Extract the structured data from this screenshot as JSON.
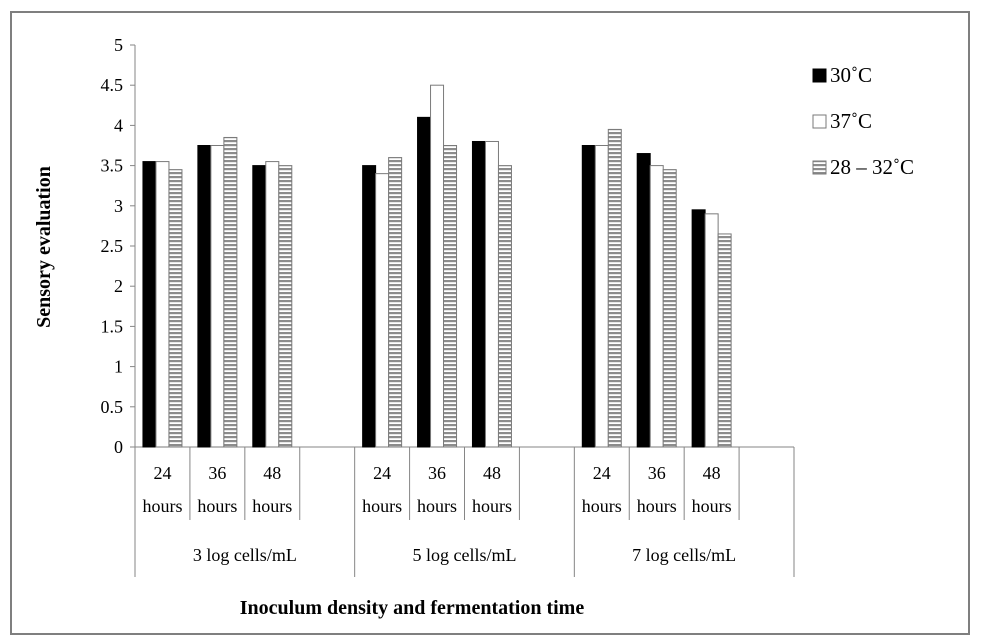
{
  "chart_data": {
    "type": "bar",
    "title": "",
    "xlabel": "Inoculum density and fermentation time",
    "ylabel": "Sensory evaluation",
    "ylim": [
      0,
      5
    ],
    "yticks": [
      "0",
      "0.5",
      "1",
      "1.5",
      "2",
      "2.5",
      "3",
      "3.5",
      "4",
      "4.5",
      "5"
    ],
    "grid": false,
    "legend_position": "right",
    "groups": [
      {
        "label": "3 log cells/mL",
        "categories": [
          [
            "24",
            "hours"
          ],
          [
            "36",
            "hours"
          ],
          [
            "48",
            "hours"
          ]
        ]
      },
      {
        "label": "5 log cells/mL",
        "categories": [
          [
            "24",
            "hours"
          ],
          [
            "36",
            "hours"
          ],
          [
            "48",
            "hours"
          ]
        ]
      },
      {
        "label": "7 log cells/mL",
        "categories": [
          [
            "24",
            "hours"
          ],
          [
            "36",
            "hours"
          ],
          [
            "48",
            "hours"
          ]
        ]
      }
    ],
    "series": [
      {
        "name": "30˚C",
        "style": "solid",
        "color": "#000000",
        "values": [
          3.55,
          3.75,
          3.5,
          3.5,
          4.1,
          3.8,
          3.75,
          3.65,
          2.95
        ]
      },
      {
        "name": "37˚C",
        "style": "white",
        "color": "#ffffff",
        "values": [
          3.55,
          3.75,
          3.55,
          3.4,
          4.5,
          3.8,
          3.75,
          3.5,
          2.9
        ]
      },
      {
        "name": "28 – 32˚C",
        "style": "striped",
        "color": "#8c8c8c",
        "values": [
          3.45,
          3.85,
          3.5,
          3.6,
          3.75,
          3.5,
          3.95,
          3.45,
          2.65
        ]
      }
    ]
  }
}
